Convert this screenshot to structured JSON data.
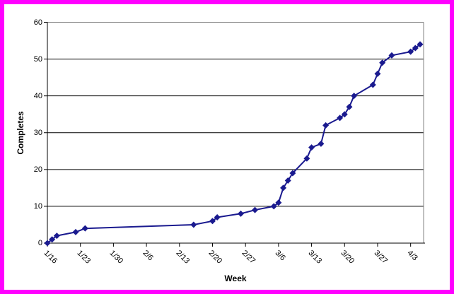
{
  "window": {
    "border_color": "#FF00FF",
    "background_color": "#FFFFFF"
  },
  "colors": {
    "series": "#1A1A8F",
    "gridline": "#000000",
    "plot_frame": "#808080",
    "axis": "#000000",
    "text": "#000000"
  },
  "chart_data": {
    "type": "line",
    "title": "",
    "xlabel": "Week",
    "ylabel": "Completes",
    "legend": "none",
    "grid": "horizontal",
    "ylim": [
      0,
      60
    ],
    "y_ticks": [
      0,
      10,
      20,
      30,
      40,
      50,
      60
    ],
    "x_tick_labels": [
      "1/16",
      "1/23",
      "1/30",
      "2/6",
      "2/13",
      "2/20",
      "2/27",
      "3/6",
      "3/13",
      "3/20",
      "3/27",
      "4/3"
    ],
    "x_tick_days": [
      0,
      7,
      14,
      21,
      28,
      35,
      42,
      49,
      56,
      63,
      70,
      77
    ],
    "x_range_days": [
      0,
      80
    ],
    "series": [
      {
        "name": "Completes",
        "color": "#1A1A8F",
        "marker": "diamond",
        "points": [
          {
            "date": "1/16",
            "day": 0,
            "value": 0
          },
          {
            "date": "1/17",
            "day": 1,
            "value": 1
          },
          {
            "date": "1/18",
            "day": 2,
            "value": 2
          },
          {
            "date": "1/22",
            "day": 6,
            "value": 3
          },
          {
            "date": "1/24",
            "day": 8,
            "value": 4
          },
          {
            "date": "2/16",
            "day": 31,
            "value": 5
          },
          {
            "date": "2/20",
            "day": 35,
            "value": 6
          },
          {
            "date": "2/21",
            "day": 36,
            "value": 7
          },
          {
            "date": "2/26",
            "day": 41,
            "value": 8
          },
          {
            "date": "3/1",
            "day": 44,
            "value": 9
          },
          {
            "date": "3/5",
            "day": 48,
            "value": 10
          },
          {
            "date": "3/6",
            "day": 49,
            "value": 11
          },
          {
            "date": "3/7",
            "day": 50,
            "value": 15
          },
          {
            "date": "3/8",
            "day": 51,
            "value": 17
          },
          {
            "date": "3/9",
            "day": 52,
            "value": 19
          },
          {
            "date": "3/12",
            "day": 55,
            "value": 23
          },
          {
            "date": "3/13",
            "day": 56,
            "value": 26
          },
          {
            "date": "3/15",
            "day": 58,
            "value": 27
          },
          {
            "date": "3/16",
            "day": 59,
            "value": 32
          },
          {
            "date": "3/19",
            "day": 62,
            "value": 34
          },
          {
            "date": "3/20",
            "day": 63,
            "value": 35
          },
          {
            "date": "3/21",
            "day": 64,
            "value": 37
          },
          {
            "date": "3/22",
            "day": 65,
            "value": 40
          },
          {
            "date": "3/26",
            "day": 69,
            "value": 43
          },
          {
            "date": "3/27",
            "day": 70,
            "value": 46
          },
          {
            "date": "3/28",
            "day": 71,
            "value": 49
          },
          {
            "date": "3/30",
            "day": 73,
            "value": 51
          },
          {
            "date": "4/3",
            "day": 77,
            "value": 52
          },
          {
            "date": "4/4",
            "day": 78,
            "value": 53
          },
          {
            "date": "4/5",
            "day": 79,
            "value": 54
          }
        ]
      }
    ]
  }
}
